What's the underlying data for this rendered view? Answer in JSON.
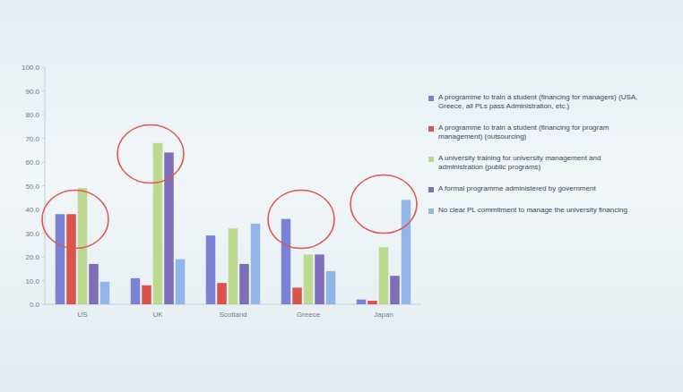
{
  "chart_data": {
    "type": "bar",
    "categories": [
      "US",
      "UK",
      "Scotland",
      "Greece",
      "Japan"
    ],
    "series": [
      {
        "name": "A programme to train a student (financing for managers) (USA, Greece, all PLs pass Administration, etc.)",
        "color": "#7b82d4",
        "values": [
          38,
          11,
          29,
          36,
          2
        ]
      },
      {
        "name": "A programme to train a student (financing for program management) (outsourcing)",
        "color": "#d9534f",
        "values": [
          38,
          8,
          9,
          7,
          1.5
        ]
      },
      {
        "name": "A university training for university management and administration (public programs)",
        "color": "#bcd98f",
        "values": [
          49,
          68,
          32,
          21,
          24
        ]
      },
      {
        "name": "A formal programme administered by government",
        "color": "#7e6fb8",
        "values": [
          17,
          64,
          17,
          21,
          12
        ]
      },
      {
        "name": "No clear PL commitment to manage the university financing",
        "color": "#92b6e8",
        "values": [
          9.5,
          19,
          34,
          14,
          44
        ]
      }
    ],
    "ylim": [
      0,
      100
    ],
    "yticks": [
      {
        "value": 0,
        "label": "0.0"
      },
      {
        "value": 10,
        "label": "10.0"
      },
      {
        "value": 20,
        "label": "20.0"
      },
      {
        "value": 30,
        "label": "30.0"
      },
      {
        "value": 40,
        "label": "40.0"
      },
      {
        "value": 50,
        "label": "50.0"
      },
      {
        "value": 60,
        "label": "60.0"
      },
      {
        "value": 70,
        "label": "70.0"
      },
      {
        "value": 80,
        "label": "80.0"
      },
      {
        "value": 90,
        "label": "90.0"
      },
      {
        "value": 100,
        "label": "100.0"
      }
    ],
    "grid": false,
    "legend": "right"
  }
}
